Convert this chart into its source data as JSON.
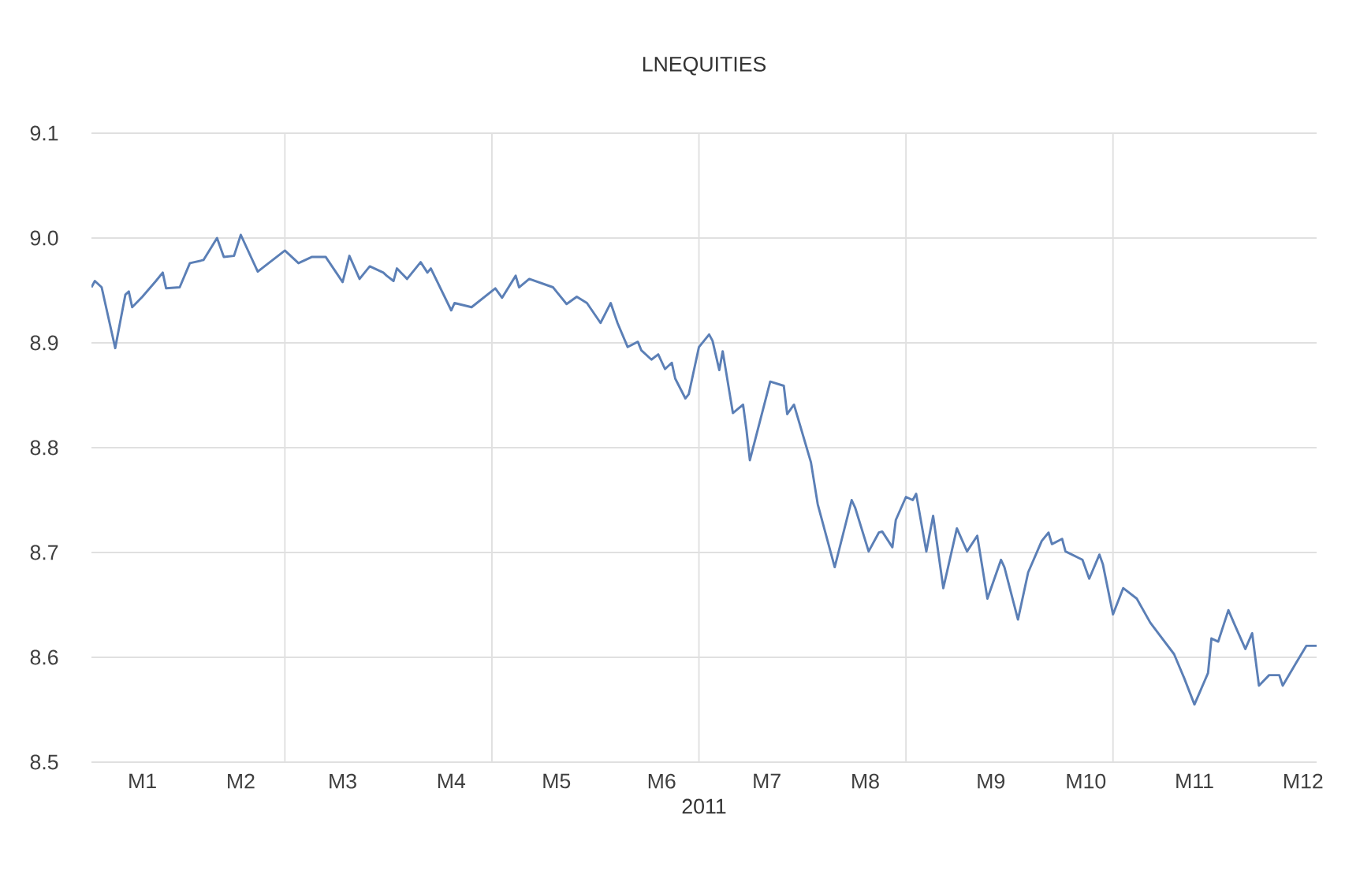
{
  "chart_data": {
    "type": "line",
    "title": "LNEQUITIES",
    "xlabel": "2011",
    "xlim": [
      "2011-01-03",
      "2011-12-30"
    ],
    "ylim": [
      8.5,
      9.1
    ],
    "xticks": [
      {
        "value": "2011-01-18",
        "label": "M1"
      },
      {
        "value": "2011-02-16",
        "label": "M2"
      },
      {
        "value": "2011-03-18",
        "label": "M3"
      },
      {
        "value": "2011-04-19",
        "label": "M4"
      },
      {
        "value": "2011-05-20",
        "label": "M5"
      },
      {
        "value": "2011-06-20",
        "label": "M6"
      },
      {
        "value": "2011-07-21",
        "label": "M7"
      },
      {
        "value": "2011-08-19",
        "label": "M8"
      },
      {
        "value": "2011-09-25",
        "label": "M9"
      },
      {
        "value": "2011-10-23",
        "label": "M10"
      },
      {
        "value": "2011-11-24",
        "label": "M11"
      },
      {
        "value": "2011-12-26",
        "label": "M12"
      },
      {
        "value": "2011-03-01",
        "label": null
      },
      {
        "value": "2011-05-01",
        "label": null
      },
      {
        "value": "2011-07-01",
        "label": null
      },
      {
        "value": "2011-08-31",
        "label": null
      },
      {
        "value": "2011-10-31",
        "label": null
      }
    ],
    "yticks": [
      8.5,
      8.6,
      8.7,
      8.8,
      8.9,
      {
        "value": 9.0,
        "label": "9.0"
      },
      9.1
    ],
    "grid": true,
    "marker": "none",
    "line_style": "solid",
    "series": [
      {
        "color": "#5b7fb6",
        "x": [
          "2011-01-03",
          "2011-01-04",
          "2011-01-06",
          "2011-01-10",
          "2011-01-13",
          "2011-01-14",
          "2011-01-15",
          "2011-01-18",
          "2011-01-22",
          "2011-01-24",
          "2011-01-25",
          "2011-01-29",
          "2011-02-01",
          "2011-02-05",
          "2011-02-09",
          "2011-02-11",
          "2011-02-14",
          "2011-02-16",
          "2011-02-21",
          "2011-02-23",
          "2011-03-01",
          "2011-03-05",
          "2011-03-09",
          "2011-03-13",
          "2011-03-18",
          "2011-03-20",
          "2011-03-23",
          "2011-03-26",
          "2011-03-30",
          "2011-03-31",
          "2011-04-02",
          "2011-04-03",
          "2011-04-06",
          "2011-04-10",
          "2011-04-12",
          "2011-04-13",
          "2011-04-19",
          "2011-04-20",
          "2011-04-25",
          "2011-05-02",
          "2011-05-04",
          "2011-05-08",
          "2011-05-09",
          "2011-05-12",
          "2011-05-19",
          "2011-05-20",
          "2011-05-23",
          "2011-05-26",
          "2011-05-29",
          "2011-06-02",
          "2011-06-05",
          "2011-06-07",
          "2011-06-10",
          "2011-06-13",
          "2011-06-14",
          "2011-06-17",
          "2011-06-19",
          "2011-06-21",
          "2011-06-23",
          "2011-06-24",
          "2011-06-27",
          "2011-06-28",
          "2011-07-01",
          "2011-07-04",
          "2011-07-05",
          "2011-07-07",
          "2011-07-08",
          "2011-07-11",
          "2011-07-14",
          "2011-07-15",
          "2011-07-16",
          "2011-07-22",
          "2011-07-26",
          "2011-07-27",
          "2011-07-29",
          "2011-08-03",
          "2011-08-05",
          "2011-08-10",
          "2011-08-15",
          "2011-08-16",
          "2011-08-20",
          "2011-08-23",
          "2011-08-24",
          "2011-08-27",
          "2011-08-28",
          "2011-08-31",
          "2011-09-02",
          "2011-09-03",
          "2011-09-06",
          "2011-09-08",
          "2011-09-11",
          "2011-09-15",
          "2011-09-18",
          "2011-09-21",
          "2011-09-24",
          "2011-09-28",
          "2011-09-29",
          "2011-10-03",
          "2011-10-06",
          "2011-10-10",
          "2011-10-12",
          "2011-10-13",
          "2011-10-16",
          "2011-10-17",
          "2011-10-22",
          "2011-10-24",
          "2011-10-27",
          "2011-10-28",
          "2011-10-31",
          "2011-11-03",
          "2011-11-07",
          "2011-11-11",
          "2011-11-18",
          "2011-11-21",
          "2011-11-24",
          "2011-11-28",
          "2011-11-29",
          "2011-12-01",
          "2011-12-04",
          "2011-12-06",
          "2011-12-09",
          "2011-12-11",
          "2011-12-13",
          "2011-12-16",
          "2011-12-19",
          "2011-12-20",
          "2011-12-24",
          "2011-12-27",
          "2011-12-30"
        ],
        "values": [
          8.953,
          8.959,
          8.953,
          8.895,
          8.946,
          8.949,
          8.934,
          8.944,
          8.959,
          8.967,
          8.952,
          8.953,
          8.976,
          8.979,
          9.0,
          8.982,
          8.983,
          9.003,
          8.968,
          8.973,
          8.988,
          8.976,
          8.982,
          8.982,
          8.958,
          8.983,
          8.961,
          8.973,
          8.967,
          8.964,
          8.959,
          8.971,
          8.961,
          8.977,
          8.967,
          8.971,
          8.931,
          8.938,
          8.934,
          8.952,
          8.943,
          8.964,
          8.953,
          8.961,
          8.953,
          8.949,
          8.937,
          8.944,
          8.938,
          8.919,
          8.938,
          8.919,
          8.896,
          8.901,
          8.893,
          8.884,
          8.889,
          8.875,
          8.881,
          8.866,
          8.847,
          8.851,
          8.896,
          8.908,
          8.902,
          8.874,
          8.892,
          8.833,
          8.841,
          8.817,
          8.788,
          8.863,
          8.859,
          8.832,
          8.841,
          8.786,
          8.746,
          8.686,
          8.75,
          8.743,
          8.701,
          8.719,
          8.72,
          8.705,
          8.731,
          8.753,
          8.75,
          8.756,
          8.701,
          8.735,
          8.666,
          8.723,
          8.701,
          8.716,
          8.656,
          8.693,
          8.686,
          8.636,
          8.681,
          8.711,
          8.719,
          8.708,
          8.713,
          8.701,
          8.693,
          8.675,
          8.698,
          8.689,
          8.641,
          8.666,
          8.656,
          8.633,
          8.603,
          8.58,
          8.555,
          8.585,
          8.618,
          8.615,
          8.645,
          8.63,
          8.608,
          8.623,
          8.573,
          8.583,
          8.583,
          8.573,
          8.595,
          8.611,
          8.611
        ]
      }
    ]
  }
}
